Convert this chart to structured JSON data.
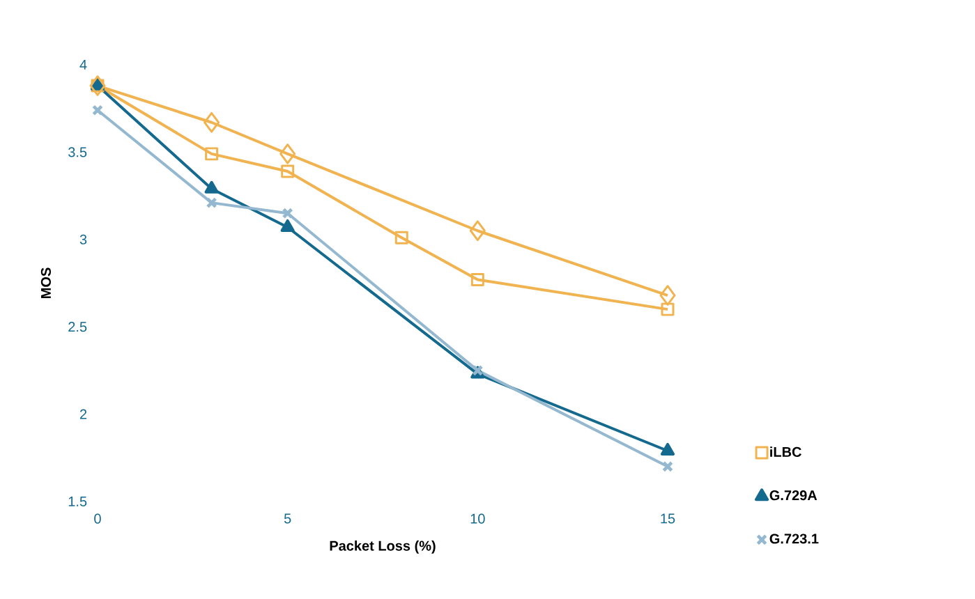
{
  "chart_data": {
    "type": "line",
    "xlabel": "Packet Loss (%)",
    "ylabel": "MOS",
    "xlim": [
      0,
      15
    ],
    "ylim": [
      1.5,
      4
    ],
    "xticks": [
      0,
      5,
      10,
      15
    ],
    "yticks": [
      1.5,
      2,
      2.5,
      3,
      3.5,
      4
    ],
    "grid": false,
    "legend": "right",
    "line_style": "solid",
    "series": [
      {
        "color": "#f0b34f",
        "marker": "diamond",
        "x": [
          0,
          3,
          5,
          10,
          15
        ],
        "values": [
          3.88,
          3.67,
          3.49,
          3.05,
          2.68
        ]
      },
      {
        "name": "iLBC",
        "color": "#f0b34f",
        "marker": "square",
        "x": [
          0,
          3,
          5,
          8,
          10,
          15
        ],
        "values": [
          3.88,
          3.49,
          3.39,
          3.01,
          2.77,
          2.6
        ]
      },
      {
        "name": "G.729A",
        "color": "#14698e",
        "marker": "triangle",
        "x": [
          0,
          3,
          5,
          10,
          15
        ],
        "values": [
          3.88,
          3.29,
          3.07,
          2.23,
          1.79
        ]
      },
      {
        "name": "G.723.1",
        "color": "#93b8cf",
        "marker": "cross",
        "x": [
          0,
          3,
          5,
          10,
          15
        ],
        "values": [
          3.74,
          3.21,
          3.15,
          2.25,
          1.7
        ]
      }
    ]
  }
}
